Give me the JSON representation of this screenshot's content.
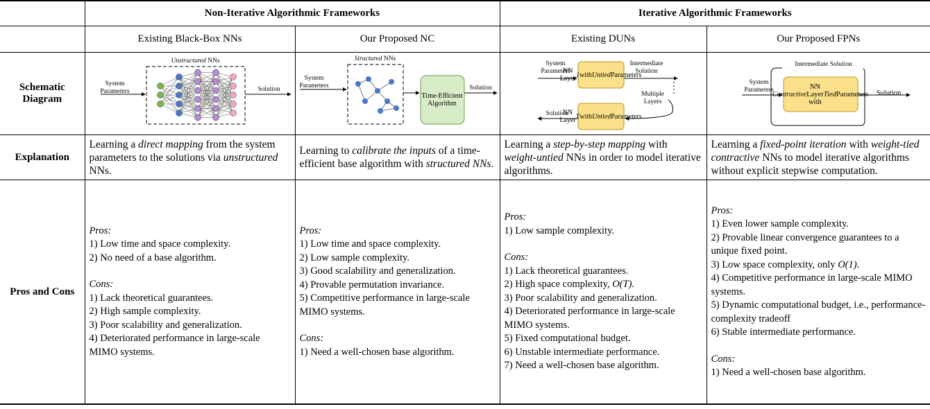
{
  "header": {
    "groups": [
      "Non-Iterative Algorithmic Frameworks",
      "Iterative Algorithmic Frameworks"
    ],
    "columns": [
      "Existing Black-Box NNs",
      "Our Proposed NC",
      "Existing DUNs",
      "Our Proposed FPNs"
    ]
  },
  "row_labels": [
    "Schematic Diagram",
    "Explanation",
    "Pros and Cons"
  ],
  "diagrams": [
    {
      "input": "System Parameters",
      "block": [
        {
          "text": "Unstructured",
          "em": true
        },
        {
          "text": " NNs"
        }
      ],
      "output": "Solution"
    },
    {
      "input": "System Parameters",
      "block": [
        {
          "text": "Structured",
          "em": true
        },
        {
          "text": " NNs"
        }
      ],
      "algorithm": "Time-Efficient Algorithm",
      "output": "Solution"
    },
    {
      "input": "System Parameters",
      "layer_first": [
        {
          "text": "NN Layer "
        },
        {
          "text": "1",
          "em": true
        },
        {
          "text": " with "
        },
        {
          "text": "Untied",
          "em": true
        },
        {
          "text": " Parameters"
        }
      ],
      "intermediate": "Intermediate Solution",
      "multiple": "Multiple Layers",
      "layer_last": [
        {
          "text": "NN Layer "
        },
        {
          "text": "T",
          "em": true
        },
        {
          "text": " with "
        },
        {
          "text": "Untied",
          "em": true
        },
        {
          "text": " Parameters"
        }
      ],
      "output": "Solution"
    },
    {
      "intermediate": "Intermediate Solution",
      "input": "System Parameters",
      "layer": [
        {
          "text": "Contractive",
          "em": true
        },
        {
          "text": " NN Layer with "
        },
        {
          "text": "Tied",
          "em": true
        },
        {
          "text": " Parameters"
        }
      ],
      "output": "Solution"
    }
  ],
  "explanations": [
    [
      {
        "text": "Learning a "
      },
      {
        "text": "direct mapping",
        "em": true
      },
      {
        "text": " from the system parameters to the solutions via "
      },
      {
        "text": "unstructured",
        "em": true
      },
      {
        "text": " NNs."
      }
    ],
    [
      {
        "text": "Learning to "
      },
      {
        "text": "calibrate the inputs",
        "em": true
      },
      {
        "text": " of a time-efficient base algorithm with "
      },
      {
        "text": "structured NNs",
        "em": true
      },
      {
        "text": "."
      }
    ],
    [
      {
        "text": "Learning a "
      },
      {
        "text": "step-by-step mapping",
        "em": true
      },
      {
        "text": " with "
      },
      {
        "text": "weight-untied",
        "em": true
      },
      {
        "text": " NNs in order to model iterative algorithms."
      }
    ],
    [
      {
        "text": "Learning a "
      },
      {
        "text": "fixed-point iteration",
        "em": true
      },
      {
        "text": " with "
      },
      {
        "text": "weight-tied contractive",
        "em": true
      },
      {
        "text": " NNs to model iterative algorithms without explicit stepwise computation."
      }
    ]
  ],
  "pros_cons": [
    {
      "pros_label": "Pros:",
      "pros": [
        "1) Low time and space complexity.",
        "2) No need of a base algorithm."
      ],
      "cons_label": "Cons:",
      "cons": [
        "1) Lack theoretical guarantees.",
        "2) High sample complexity.",
        "3) Poor scalability and generalization.",
        "4) Deteriorated performance in large-scale MIMO systems."
      ]
    },
    {
      "pros_label": "Pros:",
      "pros": [
        "1) Low time and space complexity.",
        "2) Low sample complexity.",
        "3) Good scalability and generalization.",
        "4) Provable permutation invariance.",
        "5) Competitive performance in large-scale MIMO systems."
      ],
      "cons_label": "Cons:",
      "cons": [
        "1) Need a well-chosen base algorithm."
      ]
    },
    {
      "pros_label": "Pros:",
      "pros": [
        "1) Low sample complexity."
      ],
      "cons_label": "Cons:",
      "cons": [
        "1) Lack theoretical guarantees.",
        [
          {
            "text": "2) High space complexity, "
          },
          {
            "text": "O(T)",
            "em": true
          },
          {
            "text": "."
          }
        ],
        "3) Poor scalability and generalization.",
        "4) Deteriorated performance in large-scale MIMO systems.",
        "5) Fixed computational budget.",
        "6) Unstable intermediate performance.",
        "7) Need a well-chosen base algorithm."
      ]
    },
    {
      "pros_label": "Pros:",
      "pros": [
        "1) Even lower sample complexity.",
        "2) Provable linear convergence guarantees to a unique fixed point.",
        [
          {
            "text": "3) Low space complexity, only "
          },
          {
            "text": "O(1)",
            "em": true
          },
          {
            "text": "."
          }
        ],
        "4) Competitive performance in large-scale MIMO systems.",
        "5) Dynamic computational budget, i.e., performance-complexity tradeoff",
        "6) Stable intermediate performance."
      ],
      "cons_label": "Cons:",
      "cons": [
        "1) Need a well-chosen base algorithm."
      ]
    }
  ]
}
